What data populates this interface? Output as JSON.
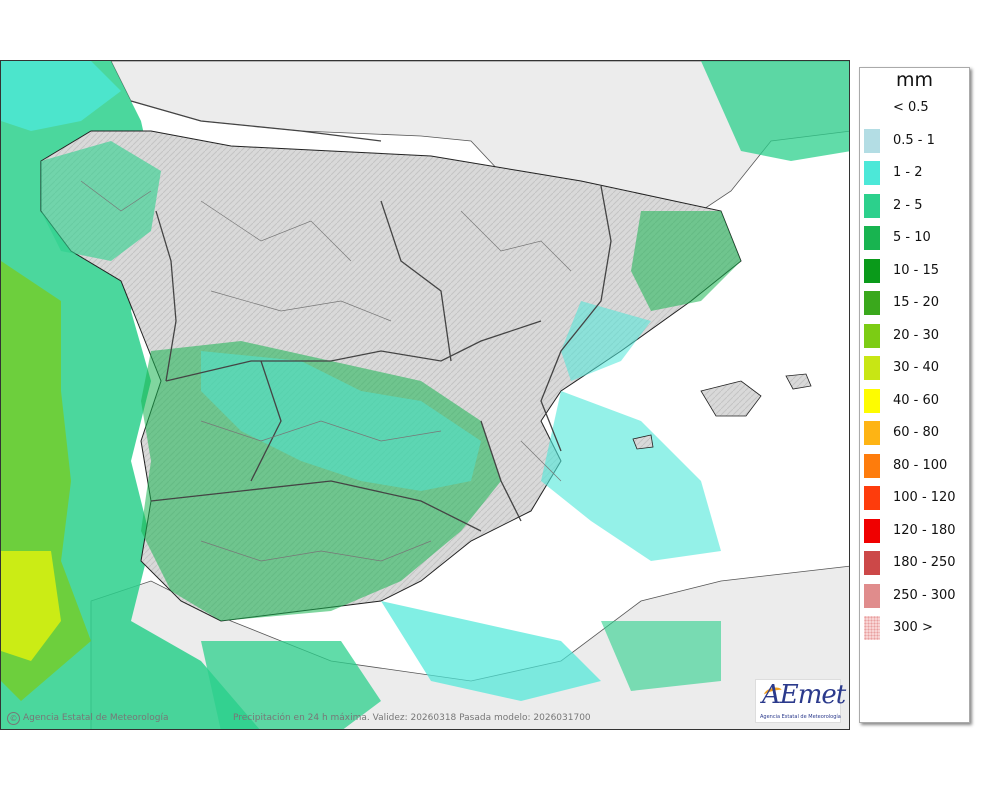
{
  "map": {
    "copyright": "Agencia Estatal de Meteorología",
    "caption": "Precipitación en 24 h máxima. Validez: 20260318 Pasada modelo: 2026031700",
    "logo_text": "AEmet",
    "logo_subtext": "Agencia Estatal de Meteorología"
  },
  "legend": {
    "unit": "mm",
    "items": [
      {
        "label": "< 0.5",
        "color": "#ffffff"
      },
      {
        "label": "0.5 - 1",
        "color": "#b3dde4"
      },
      {
        "label": "1 - 2",
        "color": "#4ce8d8"
      },
      {
        "label": "2 - 5",
        "color": "#2cd08c"
      },
      {
        "label": "5 - 10",
        "color": "#18b450"
      },
      {
        "label": "10 - 15",
        "color": "#0a9a1a"
      },
      {
        "label": "15 - 20",
        "color": "#3aa81c"
      },
      {
        "label": "20 - 30",
        "color": "#7ccc14"
      },
      {
        "label": "30 - 40",
        "color": "#c8e614"
      },
      {
        "label": "40 - 60",
        "color": "#fefc00"
      },
      {
        "label": "60 - 80",
        "color": "#feb414"
      },
      {
        "label": "80 - 100",
        "color": "#fe7c0c"
      },
      {
        "label": "100 - 120",
        "color": "#fe3c0c"
      },
      {
        "label": "120 - 180",
        "color": "#f00000"
      },
      {
        "label": "180 - 250",
        "color": "#cc4848"
      },
      {
        "label": "250 - 300",
        "color": "#e08c8c"
      },
      {
        "label": "300 >",
        "color": "#f8d4d4"
      }
    ]
  }
}
